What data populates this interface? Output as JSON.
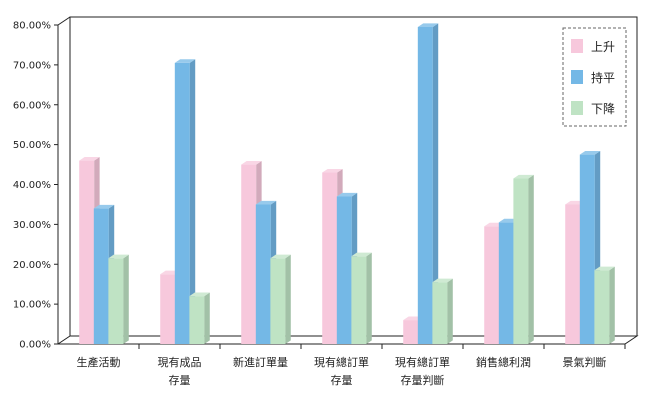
{
  "chart_data": {
    "type": "bar",
    "title": "",
    "xlabel": "",
    "ylabel": "",
    "ylim": [
      0,
      0.8
    ],
    "yticks": [
      "0.00%",
      "10.00%",
      "20.00%",
      "30.00%",
      "40.00%",
      "50.00%",
      "60.00%",
      "70.00%",
      "80.00%"
    ],
    "categories": [
      [
        "生產活動"
      ],
      [
        "現有成品",
        "存量"
      ],
      [
        "新進訂單量"
      ],
      [
        "現有總訂單",
        "存量"
      ],
      [
        "現有總訂單",
        "存量判斷"
      ],
      [
        "銷售總利潤"
      ],
      [
        "景氣判斷"
      ]
    ],
    "series": [
      {
        "name": "上升",
        "color": "#f7c8dc",
        "values": [
          0.46,
          0.175,
          0.45,
          0.43,
          0.06,
          0.295,
          0.35
        ]
      },
      {
        "name": "持平",
        "color": "#74b8e6",
        "values": [
          0.34,
          0.705,
          0.35,
          0.37,
          0.795,
          0.305,
          0.475
        ]
      },
      {
        "name": "下降",
        "color": "#bfe3c4",
        "values": [
          0.215,
          0.12,
          0.215,
          0.22,
          0.155,
          0.415,
          0.185
        ]
      }
    ],
    "legend_position": "top-right",
    "grid": false,
    "style": "3d-column"
  }
}
